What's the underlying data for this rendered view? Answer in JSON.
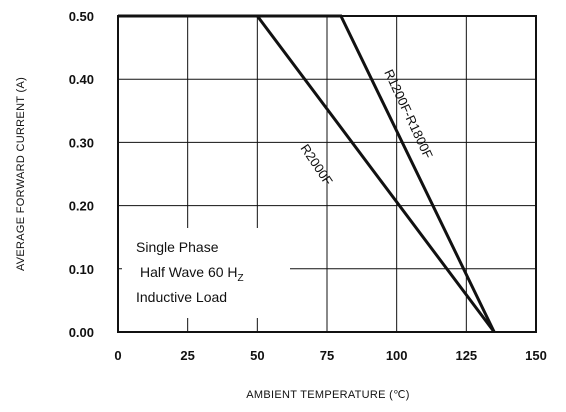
{
  "chart_data": {
    "type": "line",
    "xlabel": "AMBIENT  TEMPERATURE (℃)",
    "ylabel": "AVERAGE FORWARD CURRENT (A)",
    "xlim": [
      0,
      150
    ],
    "ylim": [
      0,
      0.5
    ],
    "x_ticks": [
      "0",
      "25",
      "50",
      "75",
      "100",
      "125",
      "150"
    ],
    "y_ticks": [
      "0.00",
      "0.10",
      "0.20",
      "0.30",
      "0.40",
      "0.50"
    ],
    "grid": true,
    "series": [
      {
        "name": "R2000F",
        "x": [
          0,
          50,
          135
        ],
        "y": [
          0.5,
          0.5,
          0
        ]
      },
      {
        "name": "R1200F-R1800F",
        "x": [
          0,
          80,
          135
        ],
        "y": [
          0.5,
          0.5,
          0
        ]
      }
    ],
    "annotations": {
      "note_line1": "Single Phase",
      "note_line2_main": "Half Wave 60 H",
      "note_line2_sub": "Z",
      "note_line3": "Inductive Load"
    }
  }
}
